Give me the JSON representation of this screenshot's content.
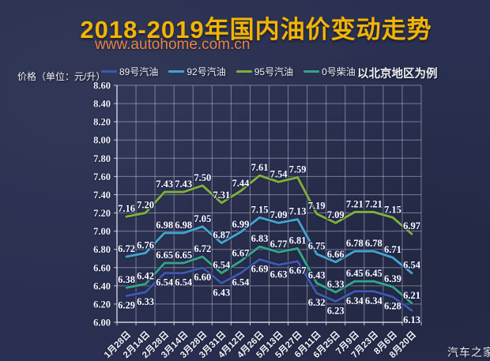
{
  "header": {
    "title": "2018-2019年国内油价变动走势",
    "url": "www.autohome.com.cn"
  },
  "legend": {
    "unit_label": "价格（单位：元/升）",
    "note": "以北京地区为例"
  },
  "watermark": "汽车之家",
  "colors": {
    "background": "#2a3051",
    "title": "#f2b405",
    "url": "#e5854e",
    "text": "#eef0f6"
  },
  "chart_data": {
    "type": "line",
    "title": "2018-2019年国内油价变动走势",
    "xlabel": "",
    "ylabel": "价格（单位：元/升）",
    "ylim": [
      6.0,
      8.6
    ],
    "ytick_step": 0.2,
    "grid": true,
    "legend_position": "top",
    "categories": [
      "1月28日",
      "2月14日",
      "2月28日",
      "3月14日",
      "3月28日",
      "3月31日",
      "4月12日",
      "4月26日",
      "5月13日",
      "5月27日",
      "6月11日",
      "6月25日",
      "7月9日",
      "7月23日",
      "8月6日",
      "8月20日"
    ],
    "series": [
      {
        "name": "89号汽油",
        "color": "#3d59b0",
        "label_position": "below",
        "values": [
          6.29,
          6.33,
          6.54,
          6.54,
          6.6,
          6.43,
          6.54,
          6.69,
          6.63,
          6.67,
          6.32,
          6.23,
          6.34,
          6.34,
          6.28,
          6.13
        ]
      },
      {
        "name": "92号汽油",
        "color": "#43a2ce",
        "label_position": "above",
        "values": [
          6.72,
          6.76,
          6.98,
          6.98,
          7.05,
          6.87,
          6.99,
          7.15,
          7.09,
          7.13,
          6.75,
          6.66,
          6.78,
          6.78,
          6.71,
          6.54
        ]
      },
      {
        "name": "95号汽油",
        "color": "#7fae3e",
        "label_position": "above",
        "values": [
          7.16,
          7.2,
          7.43,
          7.43,
          7.5,
          7.31,
          7.44,
          7.61,
          7.54,
          7.59,
          7.19,
          7.09,
          7.21,
          7.21,
          7.15,
          6.97
        ]
      },
      {
        "name": "0号柴油",
        "color": "#34a28c",
        "label_position": "above",
        "values": [
          6.38,
          6.42,
          6.65,
          6.65,
          6.72,
          6.54,
          6.67,
          6.83,
          6.77,
          6.81,
          6.43,
          6.33,
          6.45,
          6.45,
          6.39,
          6.21
        ]
      }
    ]
  }
}
